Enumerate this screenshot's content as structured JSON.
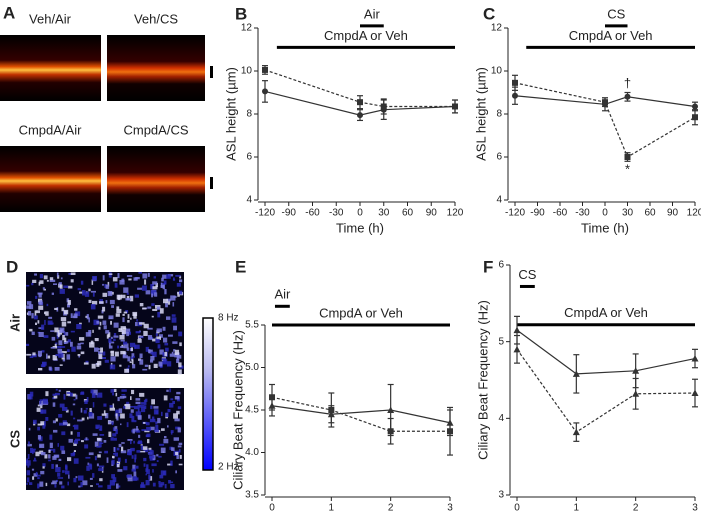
{
  "panels": {
    "A": {
      "letter": "A",
      "images": [
        "Veh/Air",
        "Veh/CS",
        "CmpdA/Air",
        "CmpdA/CS"
      ]
    },
    "D": {
      "letter": "D",
      "images": [
        "Air",
        "CS"
      ],
      "colorbar": [
        "8 Hz",
        "2 Hz"
      ]
    }
  },
  "chart_data": [
    {
      "type": "line",
      "panel": "B",
      "xlabel": "Time (h)",
      "ylabel": "ASL height (µm)",
      "x": [
        -120,
        0,
        30,
        120
      ],
      "xlim": [
        -120,
        120
      ],
      "xticks": [
        -120,
        -90,
        -60,
        -30,
        0,
        30,
        60,
        90,
        120
      ],
      "ylim": [
        4,
        12
      ],
      "yticks": [
        4,
        6,
        8,
        10,
        12
      ],
      "series": [
        {
          "color": "#333333",
          "dash": false,
          "marker": "circle",
          "values": [
            9.05,
            7.95,
            8.2,
            8.35
          ],
          "errors": [
            0.5,
            0.25,
            0.45,
            0.3
          ]
        },
        {
          "color": "#333333",
          "dash": true,
          "marker": "square",
          "values": [
            10.05,
            8.55,
            8.35,
            8.35
          ],
          "errors": [
            0.2,
            0.3,
            0.35,
            0.3
          ]
        }
      ],
      "bars": [
        {
          "from": 0,
          "to": 30,
          "level": 12.1,
          "label": "Air"
        },
        {
          "from": -105,
          "to": 120,
          "level": 11.1,
          "label": "CmpdA or Veh"
        }
      ],
      "annotations": []
    },
    {
      "type": "line",
      "panel": "C",
      "xlabel": "Time (h)",
      "ylabel": "ASL height (µm)",
      "x": [
        -120,
        0,
        30,
        120
      ],
      "xlim": [
        -120,
        120
      ],
      "xticks": [
        -120,
        -90,
        -60,
        -30,
        0,
        30,
        60,
        90,
        120
      ],
      "ylim": [
        4,
        12
      ],
      "yticks": [
        4,
        6,
        8,
        10,
        12
      ],
      "series": [
        {
          "color": "#333333",
          "dash": false,
          "marker": "circle",
          "values": [
            8.85,
            8.45,
            8.8,
            8.35
          ],
          "errors": [
            0.4,
            0.3,
            0.2,
            0.2
          ]
        },
        {
          "color": "#333333",
          "dash": true,
          "marker": "square",
          "values": [
            9.45,
            8.55,
            6.0,
            7.85
          ],
          "errors": [
            0.35,
            0.2,
            0.2,
            0.35
          ]
        }
      ],
      "bars": [
        {
          "from": 0,
          "to": 30,
          "level": 12.1,
          "label": "CS"
        },
        {
          "from": -105,
          "to": 120,
          "level": 11.1,
          "label": "CmpdA or Veh"
        }
      ],
      "annotations": [
        {
          "x": 30,
          "y": 9.4,
          "label": "†"
        },
        {
          "x": 30,
          "y": 5.4,
          "label": "*"
        }
      ]
    },
    {
      "type": "line",
      "panel": "E",
      "xlabel": "Time (h)",
      "ylabel": "Ciliary Beat Frequency (Hz)",
      "x": [
        0,
        1,
        2,
        3
      ],
      "xlim": [
        0,
        3
      ],
      "xticks": [
        0,
        1,
        2,
        3
      ],
      "ylim": [
        3.5,
        5.5
      ],
      "yticks": [
        3.5,
        {
          "value": 4,
          "label": "4.0"
        },
        4.5,
        {
          "value": 5,
          "label": "5.0"
        },
        5.5
      ],
      "series": [
        {
          "color": "#333333",
          "dash": false,
          "marker": "triangle",
          "values": [
            4.55,
            4.45,
            4.5,
            4.35
          ],
          "errors": [
            0.12,
            0.1,
            0.3,
            0.15
          ]
        },
        {
          "color": "#333333",
          "dash": true,
          "marker": "square",
          "values": [
            4.65,
            4.5,
            4.25,
            4.25
          ],
          "errors": [
            0.15,
            0.2,
            0.15,
            0.28
          ]
        }
      ],
      "bars": [
        {
          "from": 0.05,
          "to": 0.3,
          "level": 5.72,
          "label": "Air"
        },
        {
          "from": 0,
          "to": 3,
          "level": 5.5,
          "label": "CmpdA or Veh"
        }
      ],
      "annotations": []
    },
    {
      "type": "line",
      "panel": "F",
      "xlabel": "Time (h)",
      "ylabel": "Ciliary Beat Frequency (Hz)",
      "x": [
        0,
        1,
        2,
        3
      ],
      "xlim": [
        0,
        3
      ],
      "xticks": [
        0,
        1,
        2,
        3
      ],
      "ylim": [
        3,
        6
      ],
      "yticks": [
        3,
        4,
        5,
        6
      ],
      "series": [
        {
          "color": "#333333",
          "dash": false,
          "marker": "triangle",
          "values": [
            5.15,
            4.58,
            4.62,
            4.78
          ],
          "errors": [
            0.18,
            0.25,
            0.22,
            0.12
          ]
        },
        {
          "color": "#333333",
          "dash": true,
          "marker": "triangle",
          "values": [
            4.9,
            3.82,
            4.32,
            4.33
          ],
          "errors": [
            0.18,
            0.12,
            0.2,
            0.18
          ]
        }
      ],
      "bars": [
        {
          "from": 0.05,
          "to": 0.3,
          "level": 5.72,
          "label": "CS"
        },
        {
          "from": 0,
          "to": 3,
          "level": 5.22,
          "label": "CmpdA or Veh"
        }
      ],
      "annotations": []
    }
  ]
}
